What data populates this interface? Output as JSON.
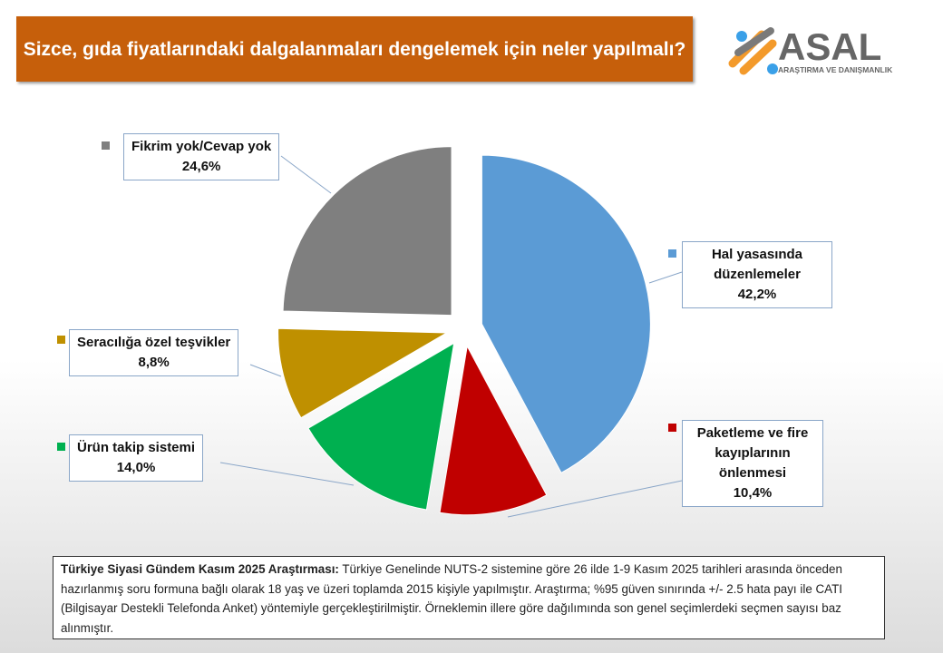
{
  "title": "Sizce, gıda fiyatlarındaki dalgalanmaları dengelemek için neler yapılmalı?",
  "logo": {
    "name": "ASAL",
    "subtitle": "ARAŞTIRMA VE DANIŞMANLIK"
  },
  "chart_data": {
    "type": "pie",
    "slices": [
      {
        "label": "Hal yasasında düzenlemeler",
        "value": 42.2,
        "display": "42,2%",
        "color": "#5b9bd5"
      },
      {
        "label": "Paketleme ve fire kayıplarının önlenmesi",
        "value": 10.4,
        "display": "10,4%",
        "color": "#c00000"
      },
      {
        "label": "Ürün takip sistemi",
        "value": 14.0,
        "display": "14,0%",
        "color": "#00b050"
      },
      {
        "label": "Seracılığa özel teşvikler",
        "value": 8.8,
        "display": "8,8%",
        "color": "#bf9000"
      },
      {
        "label": "Fikrim yok/Cevap yok",
        "value": 24.6,
        "display": "24,6%",
        "color": "#7f7f7f"
      }
    ],
    "exploded": true
  },
  "note": {
    "bold": "Türkiye Siyasi Gündem Kasım 2025 Araştırması:",
    "text": " Türkiye Genelinde NUTS-2 sistemine göre 26 ilde 1-9 Kasım 2025 tarihleri arasında önceden hazırlanmış soru formuna bağlı olarak 18 yaş ve üzeri toplamda 2015 kişiyle yapılmıştır. Araştırma; %95 güven sınırında +/- 2.5 hata payı ile CATI (Bilgisayar Destekli Telefonda Anket) yöntemiyle gerçekleştirilmiştir. Örneklemin illere göre dağılımında son genel seçimlerdeki seçmen sayısı baz alınmıştır."
  }
}
